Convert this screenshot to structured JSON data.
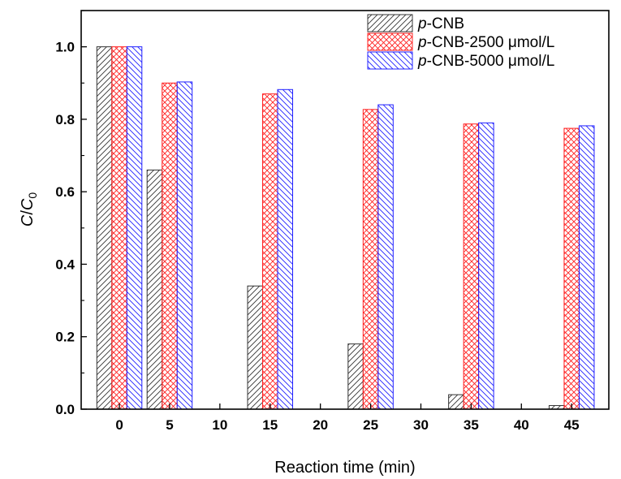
{
  "chart_data": {
    "type": "bar",
    "title": "",
    "xlabel": "Reaction time (min)",
    "ylabel": {
      "italic_main": "C",
      "slash": "/",
      "italic_sub_base": "C",
      "subscript": "0"
    },
    "x_ticks": [
      0,
      5,
      10,
      15,
      20,
      25,
      30,
      35,
      40,
      45
    ],
    "y_ticks": [
      "0.0",
      "0.2",
      "0.4",
      "0.6",
      "0.8",
      "1.0"
    ],
    "ylim": [
      0,
      1.1
    ],
    "xlim": [
      -3.8,
      48.7
    ],
    "categories": [
      0,
      5,
      15,
      25,
      35,
      45
    ],
    "legend_placement": "top-right",
    "series": [
      {
        "name_prefix": "p",
        "name_rest": "-CNB",
        "color": "#333333",
        "pattern": "diagonal-up",
        "values": [
          1.0,
          0.66,
          0.34,
          0.18,
          0.04,
          0.01
        ]
      },
      {
        "name_prefix": "p",
        "name_rest": "-CNB-2500 μmol/L",
        "color": "#ff2020",
        "pattern": "crosshatch",
        "values": [
          1.0,
          0.9,
          0.87,
          0.827,
          0.787,
          0.775
        ]
      },
      {
        "name_prefix": "p",
        "name_rest": "-CNB-5000 μmol/L",
        "color": "#2020ff",
        "pattern": "diagonal-down",
        "values": [
          1.0,
          0.903,
          0.882,
          0.84,
          0.79,
          0.782
        ]
      }
    ]
  }
}
